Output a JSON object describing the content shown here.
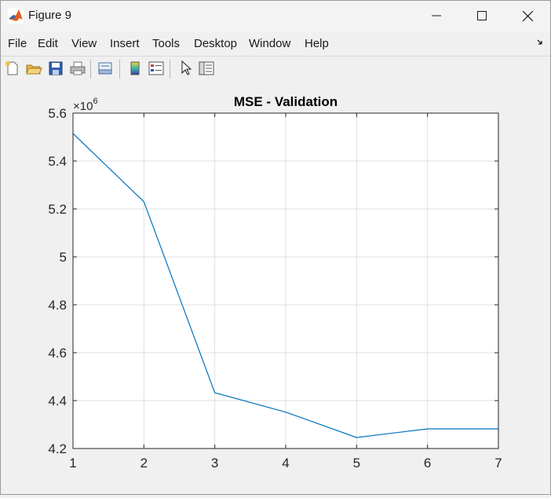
{
  "window": {
    "title": "Figure 9"
  },
  "menu": {
    "items": [
      "File",
      "Edit",
      "View",
      "Insert",
      "Tools",
      "Desktop",
      "Window",
      "Help"
    ]
  },
  "toolbar": {
    "buttons": [
      {
        "icon": "new-figure-icon"
      },
      {
        "icon": "open-file-icon"
      },
      {
        "icon": "save-icon"
      },
      {
        "icon": "print-icon"
      },
      {
        "icon": "link-plot-icon"
      },
      {
        "icon": "colorbar-icon"
      },
      {
        "icon": "legend-icon"
      },
      {
        "icon": "edit-plot-arrow-icon"
      },
      {
        "icon": "property-inspector-icon"
      }
    ]
  },
  "colors": {
    "line": "#0072bd",
    "grid": "#dfdfdf",
    "axes_bg": "#ffffff",
    "axis_text": "#262626"
  },
  "chart_data": {
    "type": "line",
    "title": "MSE - Validation",
    "xlabel": "",
    "ylabel": "",
    "exponent_label": "×10",
    "exponent_power": "6",
    "x": [
      1,
      2,
      3,
      4,
      5,
      6,
      7
    ],
    "y": [
      5.515,
      5.23,
      4.433,
      4.352,
      4.246,
      4.282,
      4.282
    ],
    "xlim": [
      1,
      7
    ],
    "ylim": [
      4.2,
      5.6
    ],
    "xticks": [
      "1",
      "2",
      "3",
      "4",
      "5",
      "6",
      "7"
    ],
    "yticks": [
      "4.2",
      "4.4",
      "4.6",
      "4.8",
      "5",
      "5.2",
      "5.4",
      "5.6"
    ],
    "grid": true,
    "legend": "none"
  }
}
